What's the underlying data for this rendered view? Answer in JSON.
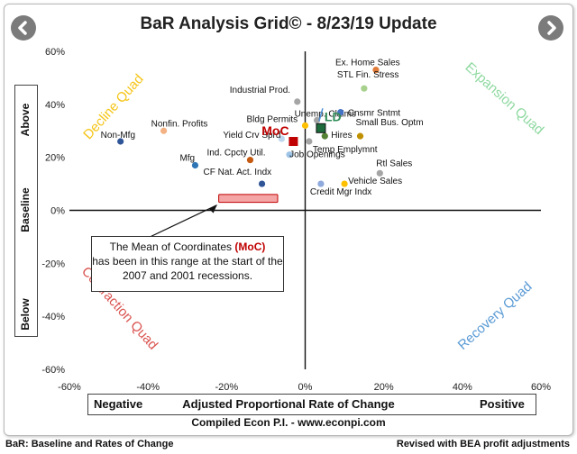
{
  "title": "BaR Analysis Grid© - 8/23/19 Update",
  "nav": {
    "prev_icon": "chevron-left",
    "next_icon": "chevron-right"
  },
  "axis": {
    "y_above": "Above",
    "y_baseline": "Baseline",
    "y_below": "Below",
    "x_negative": "Negative",
    "x_title": "Adjusted Proportional Rate of Change",
    "x_positive": "Positive"
  },
  "footer": {
    "center": "Compiled Econ P.I. - www.econpi.com",
    "left": "BaR: Baseline and Rates of Change",
    "right": "Revised with BEA profit adjustments"
  },
  "note": {
    "before": "The Mean of Coordinates ",
    "moc": "(MoC)",
    "after": "has been in this range at the start of the 2007 and 2001 recessions."
  },
  "colors": {
    "decline": "#f5c518",
    "expansion": "#8ed9a0",
    "contraction": "#d9534f",
    "recovery": "#5b9bd5",
    "moc": "#c00000",
    "ld": "#2e8b57",
    "range_fill": "#f4a6a6",
    "range_stroke": "#c00000"
  },
  "chart_data": {
    "type": "scatter",
    "xlim": [
      -60,
      60
    ],
    "ylim": [
      -60,
      60
    ],
    "x_ticks": [
      -60,
      -40,
      -20,
      0,
      20,
      40,
      60
    ],
    "y_ticks": [
      -60,
      -40,
      -20,
      0,
      20,
      40,
      60
    ],
    "x_tick_labels": [
      "-60%",
      "-40%",
      "-20%",
      "0%",
      "20%",
      "40%",
      "60%"
    ],
    "y_tick_labels": [
      "-60%",
      "-40%",
      "-20%",
      "0%",
      "20%",
      "40%",
      "60%"
    ],
    "grid": false,
    "quadrants": [
      {
        "label": "Decline Quad",
        "color": "#f5c518"
      },
      {
        "label": "Expansion Quad",
        "color": "#8ed9a0"
      },
      {
        "label": "Contraction Quad",
        "color": "#d9534f"
      },
      {
        "label": "Recovery Quad",
        "color": "#5b9bd5"
      }
    ],
    "points": [
      {
        "label": "Ex. Home Sales",
        "x": 18,
        "y": 53,
        "color": "#e07b39"
      },
      {
        "label": "STL Fin. Stress",
        "x": 15,
        "y": 46,
        "color": "#a9d18e"
      },
      {
        "label": "Industrial Prod.",
        "x": -2,
        "y": 41,
        "color": "#a5a5a5"
      },
      {
        "label": "Unemp. Claims",
        "x": 3,
        "y": 34,
        "color": "#a5a5a5"
      },
      {
        "label": "Cnsmr Sntmt",
        "x": 9,
        "y": 37,
        "color": "#4472c4"
      },
      {
        "label": "Nonfin. Profits",
        "x": -36,
        "y": 30,
        "color": "#f4b183"
      },
      {
        "label": "Bldg Permits",
        "x": 0,
        "y": 32,
        "color": "#ffc000"
      },
      {
        "label": "Small Bus. Optm",
        "x": 14,
        "y": 28,
        "color": "#bf9000"
      },
      {
        "label": "Non-Mfg",
        "x": -47,
        "y": 26,
        "color": "#2f5597"
      },
      {
        "label": "Hires",
        "x": 5,
        "y": 28,
        "color": "#548235"
      },
      {
        "label": "Yield Crv Sprd",
        "x": -6,
        "y": 27,
        "color": "#bdd7ee"
      },
      {
        "label": "Temp Emplymnt",
        "x": 1,
        "y": 26,
        "color": "#a5a5a5"
      },
      {
        "label": "Ind. Cpcty Util.",
        "x": -14,
        "y": 19,
        "color": "#c55a11"
      },
      {
        "label": "Job Openings",
        "x": -4,
        "y": 21,
        "color": "#9dc3e6"
      },
      {
        "label": "Mfg",
        "x": -28,
        "y": 17,
        "color": "#2e75b6"
      },
      {
        "label": "Rtl Sales",
        "x": 19,
        "y": 14,
        "color": "#a5a5a5"
      },
      {
        "label": "CF Nat. Act. Indx",
        "x": -11,
        "y": 10,
        "color": "#2f5597"
      },
      {
        "label": "Vehicle Sales",
        "x": 10,
        "y": 10,
        "color": "#ffc000"
      },
      {
        "label": "Credit Mgr Indx",
        "x": 4,
        "y": 10,
        "color": "#8faadc"
      }
    ],
    "markers": [
      {
        "label": "MoC",
        "x": -3,
        "y": 26,
        "color": "#c00000"
      },
      {
        "label": "LD",
        "x": 4,
        "y": 31,
        "color": "#2e8b57"
      }
    ],
    "moc_range": {
      "x": [
        -22,
        -7
      ],
      "y": [
        3,
        6
      ]
    }
  }
}
